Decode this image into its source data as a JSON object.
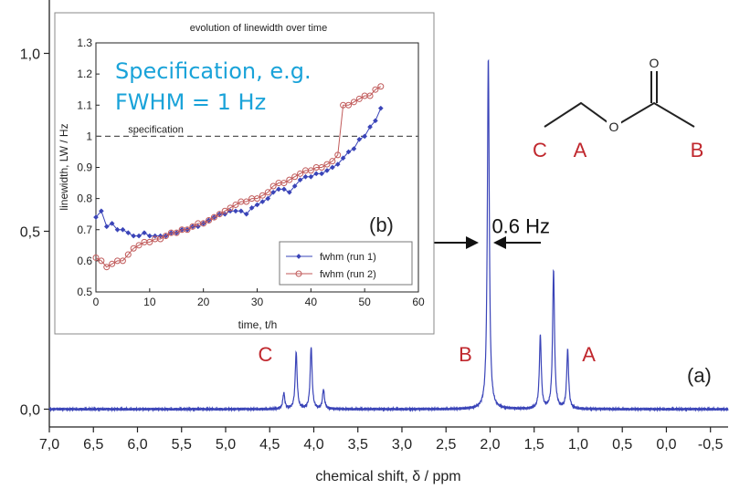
{
  "chart_data": [
    {
      "id": "main",
      "type": "line",
      "panel_label": "(a)",
      "xlabel": "chemical shift, δ / ppm",
      "ylabel": "",
      "xlim": [
        7.0,
        -0.7
      ],
      "ylim": [
        -0.05,
        1.15
      ],
      "x_ticks": [
        "7,0",
        "6,5",
        "6,0",
        "5,5",
        "5,0",
        "4,5",
        "4,0",
        "3,5",
        "3,0",
        "2,5",
        "2,0",
        "1,5",
        "1,0",
        "0,5",
        "0,0",
        "-0,5"
      ],
      "y_ticks": [
        "0,0",
        "0,5",
        "1,0"
      ],
      "line_color": "#3a44b8",
      "peaks": [
        {
          "x": 4.34,
          "y": 0.045
        },
        {
          "x": 4.2,
          "y": 0.16
        },
        {
          "x": 4.03,
          "y": 0.175
        },
        {
          "x": 3.89,
          "y": 0.055
        },
        {
          "x": 2.02,
          "y": 0.99
        },
        {
          "x": 1.43,
          "y": 0.205
        },
        {
          "x": 1.28,
          "y": 0.39
        },
        {
          "x": 1.12,
          "y": 0.165
        }
      ],
      "annotations": [
        {
          "text": "C",
          "x": 4.55,
          "y": 0.135,
          "color": "#c0272d"
        },
        {
          "text": "B",
          "x": 2.28,
          "y": 0.135,
          "color": "#c0272d"
        },
        {
          "text": "A",
          "x": 0.88,
          "y": 0.135,
          "color": "#c0272d"
        },
        {
          "text": "0.6 Hz",
          "x": 1.65,
          "y": 0.495,
          "color": "#111111"
        }
      ],
      "molecule_labels": [
        "O",
        "C",
        "A",
        "B"
      ]
    },
    {
      "id": "inset",
      "type": "line",
      "panel_label": "(b)",
      "title": "evolution of linewidth over time",
      "xlabel": "time, t/h",
      "ylabel": "linewidth, LW / Hz",
      "xlim": [
        0,
        60
      ],
      "ylim": [
        0.5,
        1.3
      ],
      "x_ticks": [
        "0",
        "10",
        "20",
        "30",
        "40",
        "50",
        "60"
      ],
      "y_ticks": [
        "0.5",
        "0.6",
        "0.7",
        "0.8",
        "0.9",
        "1",
        "1.1",
        "1.2",
        "1.3"
      ],
      "reference_line": {
        "label": "specification",
        "y": 1.0
      },
      "series": [
        {
          "name": "fwhm  (run 1)",
          "color": "#3a44b8",
          "marker": "filled-diamond",
          "x": [
            0,
            1,
            2,
            3,
            4,
            5,
            6,
            7,
            8,
            9,
            10,
            11,
            12,
            13,
            14,
            15,
            16,
            17,
            18,
            19,
            20,
            21,
            22,
            23,
            24,
            25,
            26,
            27,
            28,
            29,
            30,
            31,
            32,
            33,
            34,
            35,
            36,
            37,
            38,
            39,
            40,
            41,
            42,
            43,
            44,
            45,
            46,
            47,
            48,
            49,
            50,
            51,
            52,
            53
          ],
          "y": [
            0.74,
            0.76,
            0.71,
            0.72,
            0.7,
            0.7,
            0.69,
            0.68,
            0.68,
            0.69,
            0.68,
            0.68,
            0.68,
            0.68,
            0.69,
            0.69,
            0.7,
            0.7,
            0.71,
            0.71,
            0.72,
            0.73,
            0.74,
            0.75,
            0.75,
            0.76,
            0.76,
            0.76,
            0.75,
            0.77,
            0.78,
            0.79,
            0.8,
            0.82,
            0.83,
            0.83,
            0.82,
            0.84,
            0.86,
            0.87,
            0.87,
            0.88,
            0.88,
            0.89,
            0.9,
            0.91,
            0.93,
            0.95,
            0.96,
            0.99,
            1.0,
            1.03,
            1.05,
            1.09
          ]
        },
        {
          "name": "fwhm  (run 2)",
          "color": "#c05a5a",
          "marker": "open-circle",
          "x": [
            0,
            1,
            2,
            3,
            4,
            5,
            6,
            7,
            8,
            9,
            10,
            11,
            12,
            13,
            14,
            15,
            16,
            17,
            18,
            19,
            20,
            21,
            22,
            23,
            24,
            25,
            26,
            27,
            28,
            29,
            30,
            31,
            32,
            33,
            34,
            35,
            36,
            37,
            38,
            39,
            40,
            41,
            42,
            43,
            44,
            45,
            46,
            47,
            48,
            49,
            50,
            51,
            52,
            53
          ],
          "y": [
            0.61,
            0.6,
            0.58,
            0.59,
            0.6,
            0.6,
            0.62,
            0.64,
            0.65,
            0.66,
            0.66,
            0.67,
            0.67,
            0.68,
            0.69,
            0.69,
            0.7,
            0.7,
            0.71,
            0.72,
            0.72,
            0.73,
            0.74,
            0.75,
            0.76,
            0.77,
            0.78,
            0.79,
            0.79,
            0.8,
            0.8,
            0.81,
            0.82,
            0.84,
            0.85,
            0.85,
            0.86,
            0.87,
            0.88,
            0.89,
            0.89,
            0.9,
            0.9,
            0.91,
            0.92,
            0.94,
            1.1,
            1.1,
            1.11,
            1.12,
            1.13,
            1.13,
            1.15,
            1.16
          ]
        }
      ]
    }
  ],
  "overlay_text": {
    "line1": "Specification, e.g.",
    "line2": "FWHM = 1 Hz"
  }
}
